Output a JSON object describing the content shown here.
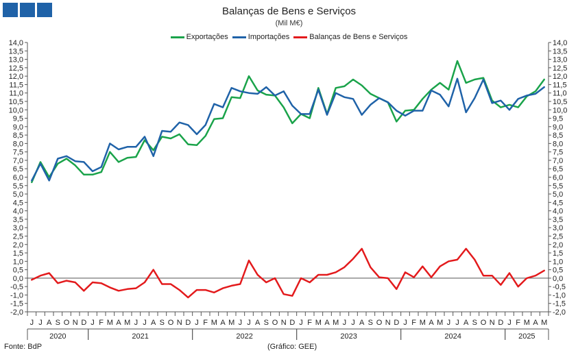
{
  "header": {
    "title": "Balanças de Bens e Serviços",
    "subtitle": "(Mil M€)"
  },
  "footer": {
    "source": "Fonte: BdP",
    "credit": "(Gráfico: GEE)"
  },
  "colors": {
    "exports": "#1aa34a",
    "imports": "#1f62a8",
    "balance": "#e31a1c",
    "logo": "#1f62a8"
  },
  "chart_data": {
    "type": "line",
    "title": "Balanças de Bens e Serviços",
    "subtitle": "(Mil M€)",
    "ylim": [
      -2.0,
      14.0
    ],
    "y_ticks": [
      "14,0",
      "13,5",
      "13,0",
      "12,5",
      "12,0",
      "11,5",
      "11,0",
      "10,5",
      "10,0",
      "9,5",
      "9,0",
      "8,5",
      "8,0",
      "7,5",
      "7,0",
      "6,5",
      "6,0",
      "5,5",
      "5,0",
      "4,5",
      "4,0",
      "3,5",
      "3,0",
      "2,5",
      "2,0",
      "1,5",
      "1,0",
      "0,5",
      "0,0",
      "-0,5",
      "-1,0",
      "-1,5",
      "-2,0"
    ],
    "y_axes": "left and right",
    "legend_position": "top-center",
    "grid": false,
    "x_months": [
      "J",
      "J",
      "A",
      "S",
      "O",
      "N",
      "D",
      "J",
      "F",
      "M",
      "A",
      "M",
      "J",
      "J",
      "A",
      "S",
      "O",
      "N",
      "D",
      "J",
      "F",
      "M",
      "A",
      "M",
      "J",
      "J",
      "A",
      "S",
      "O",
      "N",
      "D",
      "J",
      "F",
      "M",
      "A",
      "M",
      "J",
      "J",
      "A",
      "S",
      "O",
      "N",
      "D",
      "J",
      "F",
      "M",
      "A",
      "M",
      "J",
      "J",
      "A",
      "S",
      "O",
      "N",
      "D",
      "J",
      "F",
      "M",
      "A",
      "M"
    ],
    "x_years": [
      {
        "label": "2020",
        "start": 0,
        "count": 7
      },
      {
        "label": "2021",
        "start": 7,
        "count": 12
      },
      {
        "label": "2022",
        "start": 19,
        "count": 12
      },
      {
        "label": "2023",
        "start": 31,
        "count": 12
      },
      {
        "label": "2024",
        "start": 43,
        "count": 12
      },
      {
        "label": "2025",
        "start": 55,
        "count": 5
      }
    ],
    "series": [
      {
        "name": "Exportações",
        "color": "#1aa34a",
        "values": [
          5.7,
          6.9,
          6.0,
          6.8,
          7.1,
          6.7,
          6.15,
          6.15,
          6.3,
          7.5,
          6.9,
          7.15,
          7.2,
          8.2,
          7.6,
          8.4,
          8.3,
          8.55,
          7.95,
          7.9,
          8.45,
          9.45,
          9.5,
          10.75,
          10.7,
          12.0,
          11.15,
          10.9,
          10.85,
          10.15,
          9.2,
          9.75,
          9.5,
          11.3,
          9.75,
          11.3,
          11.4,
          11.8,
          11.45,
          10.95,
          10.7,
          10.45,
          9.3,
          9.95,
          10.0,
          10.65,
          11.2,
          11.6,
          11.2,
          12.9,
          11.6,
          11.8,
          11.9,
          10.55,
          10.15,
          10.3,
          10.15,
          10.8,
          11.1,
          11.8
        ]
      },
      {
        "name": "Importações",
        "color": "#1f62a8",
        "values": [
          5.8,
          6.8,
          5.8,
          7.1,
          7.25,
          6.95,
          6.9,
          6.35,
          6.6,
          8.0,
          7.65,
          7.8,
          7.8,
          8.4,
          7.25,
          8.75,
          8.7,
          9.25,
          9.1,
          8.55,
          9.1,
          10.35,
          10.15,
          11.3,
          11.1,
          11.0,
          10.95,
          11.35,
          10.85,
          11.1,
          10.25,
          9.75,
          9.75,
          11.2,
          9.7,
          11.0,
          10.75,
          10.65,
          9.7,
          10.3,
          10.7,
          10.45,
          9.95,
          9.65,
          9.95,
          9.95,
          11.15,
          10.9,
          10.2,
          11.85,
          9.85,
          10.7,
          11.8,
          10.4,
          10.55,
          10.0,
          10.65,
          10.85,
          10.95,
          11.35
        ]
      },
      {
        "name": "Balanças de Bens e Serviços",
        "color": "#e31a1c",
        "values": [
          -0.1,
          0.15,
          0.3,
          -0.3,
          -0.15,
          -0.25,
          -0.75,
          -0.25,
          -0.3,
          -0.55,
          -0.75,
          -0.65,
          -0.6,
          -0.25,
          0.5,
          -0.35,
          -0.35,
          -0.7,
          -1.15,
          -0.7,
          -0.7,
          -0.85,
          -0.6,
          -0.45,
          -0.35,
          1.05,
          0.2,
          -0.25,
          0.0,
          -0.95,
          -1.05,
          0.0,
          -0.25,
          0.2,
          0.2,
          0.35,
          0.65,
          1.15,
          1.75,
          0.65,
          0.05,
          0.0,
          -0.65,
          0.35,
          0.05,
          0.7,
          0.05,
          0.7,
          1.0,
          1.1,
          1.75,
          1.1,
          0.15,
          0.15,
          -0.4,
          0.3,
          -0.5,
          0.0,
          0.15,
          0.45
        ]
      }
    ]
  }
}
